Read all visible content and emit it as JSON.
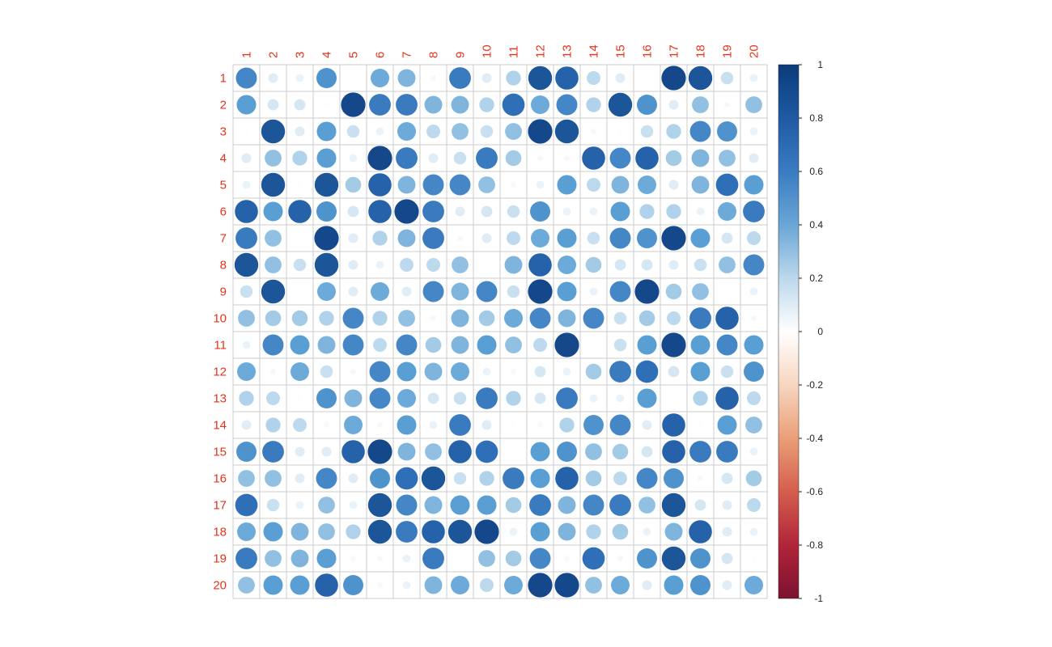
{
  "colors": {
    "label": "#e8321a",
    "grid": "#cccccc",
    "colorbar_positive_end": "#0b3b7a",
    "colorbar_zero": "#ffffff",
    "colorbar_negative_end": "#7b1230"
  },
  "chart_data": {
    "type": "heatmap",
    "style": "correlation circles (size and color encode value)",
    "row_labels": [
      "1",
      "2",
      "3",
      "4",
      "5",
      "6",
      "7",
      "8",
      "9",
      "10",
      "11",
      "12",
      "13",
      "14",
      "15",
      "16",
      "17",
      "18",
      "19",
      "20"
    ],
    "col_labels": [
      "1",
      "2",
      "3",
      "4",
      "5",
      "6",
      "7",
      "8",
      "9",
      "10",
      "11",
      "12",
      "13",
      "14",
      "15",
      "16",
      "17",
      "18",
      "19",
      "20"
    ],
    "values": [
      [
        0.7,
        0.15,
        0.1,
        0.65,
        0,
        0.55,
        0.5,
        0.05,
        0.75,
        0.15,
        0.35,
        0.9,
        0.85,
        0.3,
        0.15,
        0,
        0.95,
        0.9,
        0.25,
        0.1
      ],
      [
        0.6,
        0.2,
        0.2,
        0.02,
        0.95,
        0.75,
        0.75,
        0.5,
        0.5,
        0.35,
        0.8,
        0.55,
        0.7,
        0.35,
        0.9,
        0.65,
        0.15,
        0.45,
        0.05,
        0.45
      ],
      [
        0.02,
        0.9,
        0.15,
        0.6,
        0.25,
        0.1,
        0.55,
        0.3,
        0.45,
        0.25,
        0.45,
        0.95,
        0.9,
        0.05,
        0.02,
        0.25,
        0.35,
        0.7,
        0.65,
        0.1
      ],
      [
        0.15,
        0.45,
        0.35,
        0.6,
        0.1,
        0.95,
        0.75,
        0.15,
        0.25,
        0.75,
        0.4,
        0.05,
        0.05,
        0.85,
        0.7,
        0.85,
        0.4,
        0.5,
        0.45,
        0.15
      ],
      [
        0.1,
        0.9,
        0.02,
        0.9,
        0.4,
        0.85,
        0.5,
        0.7,
        0.7,
        0.45,
        0.05,
        0.1,
        0.6,
        0.3,
        0.5,
        0.55,
        0.15,
        0.5,
        0.8,
        0.6
      ],
      [
        0.85,
        0.6,
        0.85,
        0.65,
        0.2,
        0.85,
        0.95,
        0.75,
        0.15,
        0.2,
        0.25,
        0.65,
        0.1,
        0.1,
        0.6,
        0.35,
        0.35,
        0.1,
        0.55,
        0.75
      ],
      [
        0.75,
        0.45,
        0,
        0.95,
        0.15,
        0.35,
        0.5,
        0.75,
        0.05,
        0.15,
        0.3,
        0.55,
        0.6,
        0.25,
        0.7,
        0.65,
        0.95,
        0.6,
        0.2,
        0.3
      ],
      [
        0.9,
        0.45,
        0.25,
        0.9,
        0.15,
        0.1,
        0.3,
        0.3,
        0.45,
        0,
        0.5,
        0.85,
        0.55,
        0.4,
        0.2,
        0.2,
        0.15,
        0.25,
        0.45,
        0.7
      ],
      [
        0.25,
        0.9,
        0.02,
        0.55,
        0.15,
        0.55,
        0.15,
        0.7,
        0.5,
        0.7,
        0.25,
        0.95,
        0.6,
        0.1,
        0.7,
        0.95,
        0.4,
        0.45,
        0.02,
        0.1
      ],
      [
        0.45,
        0.4,
        0.4,
        0.35,
        0.7,
        0.35,
        0.45,
        0.05,
        0.5,
        0.4,
        0.55,
        0.7,
        0.5,
        0.7,
        0.25,
        0.4,
        0.3,
        0.75,
        0.85,
        0.05
      ],
      [
        0.1,
        0.7,
        0.6,
        0.5,
        0.7,
        0.3,
        0.7,
        0.4,
        0.5,
        0.6,
        0.45,
        0.3,
        0.95,
        0,
        0.25,
        0.6,
        0.95,
        0.6,
        0.7,
        0.6
      ],
      [
        0.55,
        0.05,
        0.55,
        0.25,
        0.05,
        0.7,
        0.6,
        0.5,
        0.55,
        0.1,
        0.05,
        0.2,
        0.1,
        0.4,
        0.75,
        0.8,
        0.2,
        0.6,
        0.25,
        0.65
      ],
      [
        0.35,
        0.3,
        0.02,
        0.65,
        0.5,
        0.7,
        0.55,
        0.2,
        0.25,
        0.75,
        0.35,
        0.2,
        0.75,
        0.1,
        0.1,
        0.6,
        0,
        0.35,
        0.85,
        0.3
      ],
      [
        0.15,
        0.35,
        0.3,
        0.05,
        0.55,
        0.05,
        0.6,
        0.1,
        0.75,
        0.15,
        0.02,
        0.05,
        0.35,
        0.65,
        0.7,
        0.15,
        0.85,
        0.02,
        0.6,
        0.45
      ],
      [
        0.65,
        0.75,
        0.15,
        0.15,
        0.85,
        0.95,
        0.5,
        0.45,
        0.85,
        0.8,
        0,
        0.6,
        0.65,
        0.45,
        0.4,
        0.2,
        0.85,
        0.75,
        0.75,
        0.1
      ],
      [
        0.45,
        0.45,
        0.15,
        0.7,
        0.15,
        0.65,
        0.8,
        0.9,
        0.25,
        0.35,
        0.75,
        0.6,
        0.85,
        0.4,
        0.3,
        0.7,
        0.65,
        0.05,
        0.2,
        0.4
      ],
      [
        0.8,
        0.25,
        0.1,
        0.45,
        0.1,
        0.9,
        0.7,
        0.5,
        0.6,
        0.6,
        0.4,
        0.75,
        0.5,
        0.7,
        0.75,
        0.45,
        0.9,
        0.2,
        0.15,
        0.3
      ],
      [
        0.55,
        0.6,
        0.5,
        0.45,
        0.35,
        0.9,
        0.75,
        0.85,
        0.9,
        0.95,
        0.1,
        0.6,
        0.5,
        0.35,
        0.4,
        0.1,
        0.5,
        0.85,
        0.15,
        0.1
      ],
      [
        0.75,
        0.45,
        0.5,
        0.6,
        0.05,
        0.05,
        0.1,
        0.75,
        0,
        0.45,
        0.4,
        0.7,
        0.05,
        0.8,
        0.05,
        0.65,
        0.9,
        0.65,
        0.2,
        0.02
      ],
      [
        0.45,
        0.6,
        0.6,
        0.85,
        0.65,
        0.05,
        0.1,
        0.5,
        0.55,
        0.3,
        0.55,
        0.95,
        0.95,
        0.45,
        0.55,
        0.15,
        0.6,
        0.65,
        0.15,
        0.55
      ]
    ],
    "colorbar": {
      "ticks": [
        "1",
        "0.8",
        "0.6",
        "0.4",
        "0.2",
        "0",
        "-0.2",
        "-0.4",
        "-0.6",
        "-0.8",
        "-1"
      ],
      "range": [
        -1,
        1
      ],
      "placement": "right"
    },
    "grid": true
  }
}
